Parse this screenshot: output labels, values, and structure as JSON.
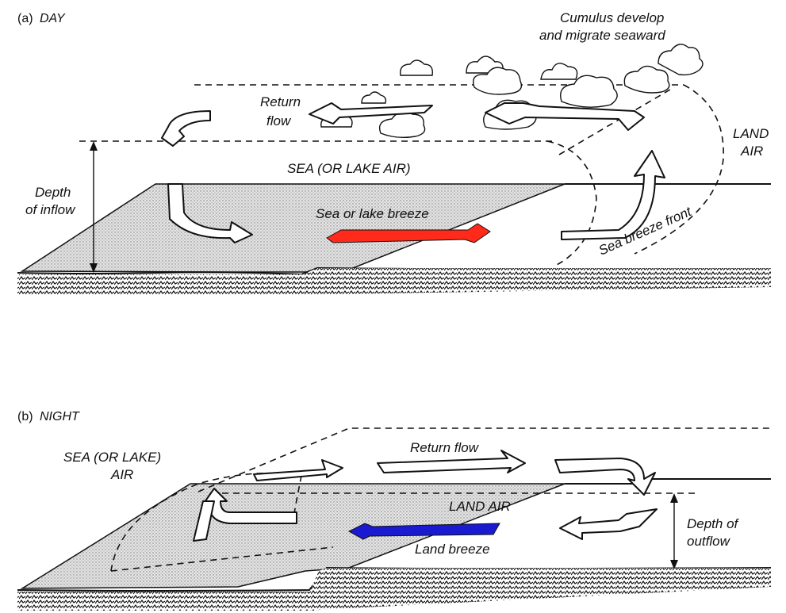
{
  "colors": {
    "sea_breeze_arrow": "#ff2a1a",
    "land_breeze_arrow": "#1a1ad0",
    "ink": "#111111",
    "water_stipple": "#bdbdbd"
  },
  "panel_a": {
    "tag": "(a)",
    "title": "DAY",
    "labels": {
      "cumulus_line1": "Cumulus develop",
      "cumulus_line2": "and migrate seaward",
      "return_flow_line1": "Return",
      "return_flow_line2": "flow",
      "sea_air": "SEA (OR LAKE AIR)",
      "land_air_line1": "LAND",
      "land_air_line2": "AIR",
      "depth_line1": "Depth",
      "depth_line2": "of inflow",
      "sea_breeze": "Sea or lake breeze",
      "sea_breeze_front": "Sea breeze front"
    }
  },
  "panel_b": {
    "tag": "(b)",
    "title": "NIGHT",
    "labels": {
      "sea_air_line1": "SEA (OR LAKE)",
      "sea_air_line2": "AIR",
      "return_flow": "Return flow",
      "land_air": "LAND AIR",
      "land_breeze": "Land breeze",
      "depth_line1": "Depth of",
      "depth_line2": "outflow"
    }
  },
  "icons": {
    "return_arrow": "hollow-arrow-icon",
    "curved_arrow": "curved-arrow-icon",
    "cloud": "cumulus-cloud-icon"
  }
}
